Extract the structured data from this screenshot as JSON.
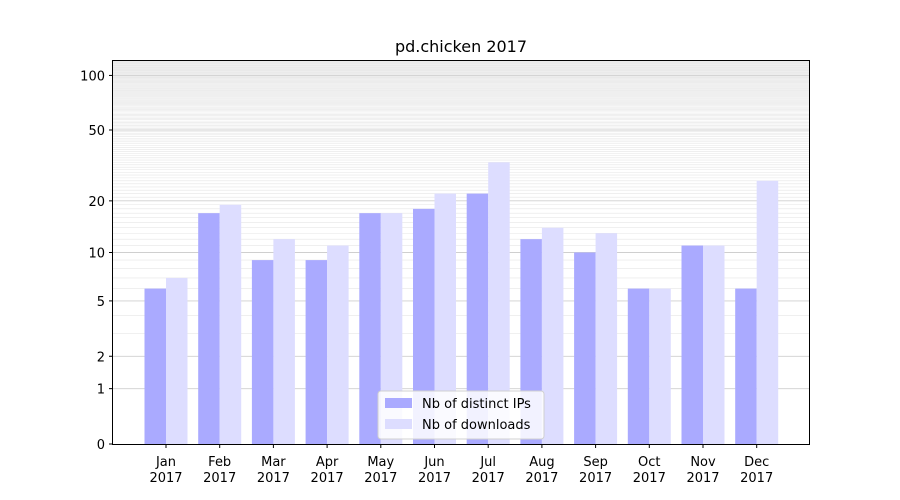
{
  "chart_data": {
    "type": "bar",
    "title": "pd.chicken 2017",
    "xlabel": "",
    "ylabel": "",
    "categories": [
      "Jan\n2017",
      "Feb\n2017",
      "Mar\n2017",
      "Apr\n2017",
      "May\n2017",
      "Jun\n2017",
      "Jul\n2017",
      "Aug\n2017",
      "Sep\n2017",
      "Oct\n2017",
      "Nov\n2017",
      "Dec\n2017"
    ],
    "series": [
      {
        "name": "Nb of distinct IPs",
        "color": "#aaaaff",
        "values": [
          6,
          17,
          9,
          9,
          17,
          18,
          22,
          12,
          10,
          6,
          11,
          6
        ]
      },
      {
        "name": "Nb of downloads",
        "color": "#ddddff",
        "values": [
          7,
          19,
          12,
          11,
          17,
          22,
          33,
          14,
          13,
          6,
          11,
          26
        ]
      }
    ],
    "yscale": "log1p",
    "ylim": [
      0,
      120
    ],
    "yticks": [
      0,
      1,
      2,
      5,
      10,
      20,
      50,
      100
    ],
    "ytick_labels": [
      "0",
      "1",
      "2",
      "5",
      "10",
      "20",
      "50",
      "100"
    ],
    "grid": true,
    "legend_position": "lower center"
  }
}
